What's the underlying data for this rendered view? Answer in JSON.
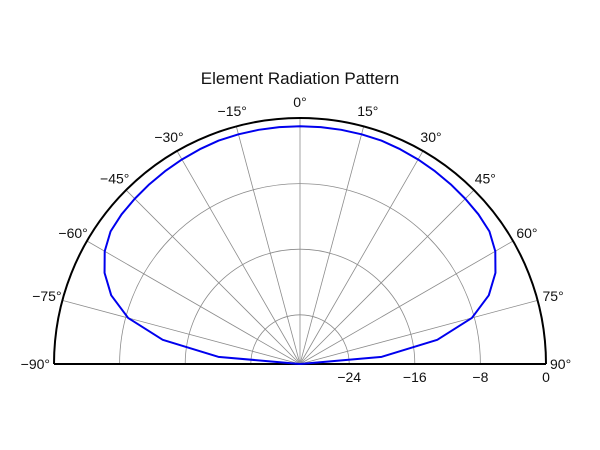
{
  "title": "Element Radiation Pattern",
  "chart_data": {
    "type": "polar-line",
    "title": "Element Radiation Pattern",
    "theta_unit": "deg",
    "theta_range": [
      -90,
      90
    ],
    "theta_zero": "top",
    "theta_ticks": [
      -90,
      -75,
      -60,
      -45,
      -30,
      -15,
      0,
      15,
      30,
      45,
      60,
      75,
      90
    ],
    "theta_tick_labels": [
      "−90°",
      "−75°",
      "−60°",
      "−45°",
      "−30°",
      "−15°",
      "0°",
      "15°",
      "30°",
      "45°",
      "60°",
      "75°",
      "90°"
    ],
    "r_range": [
      -30,
      0
    ],
    "r_unit": "dB",
    "r_ticks": [
      -24,
      -16,
      -8,
      0
    ],
    "r_tick_labels": [
      "−24",
      "−16",
      "−8",
      "0"
    ],
    "grid": true,
    "colors": {
      "series": "#0000ee",
      "grid": "#8c8c8c",
      "frame": "#000000"
    },
    "series": [
      {
        "theta": [
          -90,
          -85,
          -80,
          -75,
          -70,
          -65,
          -60,
          -55,
          -50,
          -45,
          -40,
          -35,
          -30,
          -25,
          -20,
          -15,
          -10,
          -5,
          0,
          5,
          10,
          15,
          20,
          25,
          30,
          35,
          40,
          45,
          50,
          55,
          60,
          65,
          70,
          75,
          80,
          85,
          90
        ],
        "r": [
          -30,
          -20,
          -13.0,
          -8.3,
          -5.5,
          -3.7,
          -2.5,
          -1.8,
          -1.6,
          -1.5,
          -1.4,
          -1.3,
          -1.2,
          -1.1,
          -1.0,
          -1.0,
          -1.0,
          -1.0,
          -1.0,
          -1.0,
          -1.0,
          -1.0,
          -1.0,
          -1.1,
          -1.2,
          -1.3,
          -1.4,
          -1.5,
          -1.6,
          -1.8,
          -2.5,
          -3.7,
          -5.5,
          -8.3,
          -13.0,
          -20,
          -30
        ]
      }
    ]
  }
}
